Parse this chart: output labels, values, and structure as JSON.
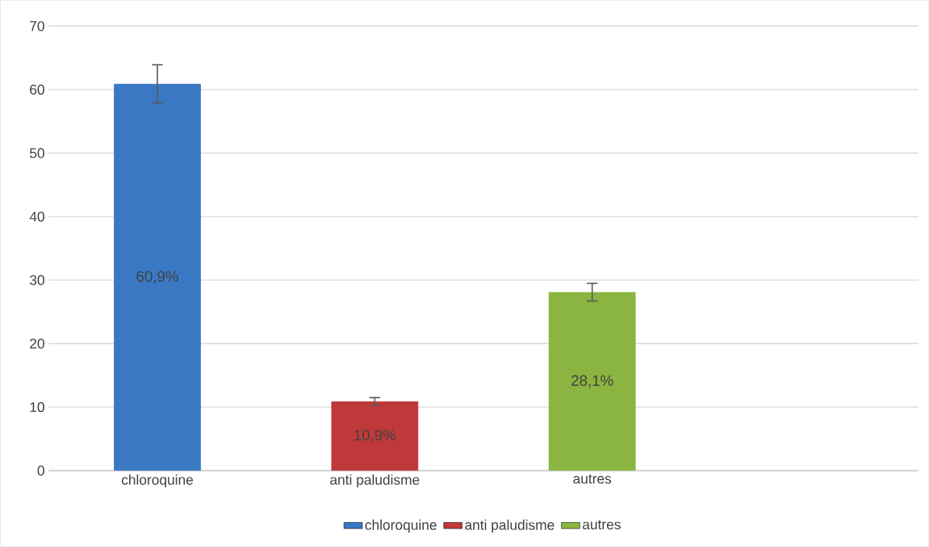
{
  "chart_data": {
    "type": "bar",
    "categories": [
      "chloroquine",
      "anti paludisme",
      "autres",
      null
    ],
    "series": [
      {
        "name": "chloroquine",
        "color": "#3a78c4",
        "values": [
          60.9,
          null,
          null,
          null
        ],
        "errors": [
          3,
          null,
          null,
          null
        ],
        "value_labels": [
          "60,9%",
          null,
          null,
          null
        ]
      },
      {
        "name": "anti paludisme",
        "color": "#c0393a",
        "values": [
          null,
          10.9,
          null,
          null
        ],
        "errors": [
          null,
          0.6,
          null,
          null
        ],
        "value_labels": [
          null,
          "10,9%",
          null,
          null
        ]
      },
      {
        "name": "autres",
        "color": "#8ab540",
        "values": [
          null,
          null,
          28.1,
          null
        ],
        "errors": [
          null,
          null,
          1.4,
          null
        ],
        "value_labels": [
          null,
          null,
          "28,1%",
          null
        ]
      }
    ],
    "ylim": [
      0,
      70
    ],
    "yticks": [
      0,
      10,
      20,
      30,
      40,
      50,
      60,
      70
    ],
    "grid": "y",
    "legend": "bottom"
  }
}
